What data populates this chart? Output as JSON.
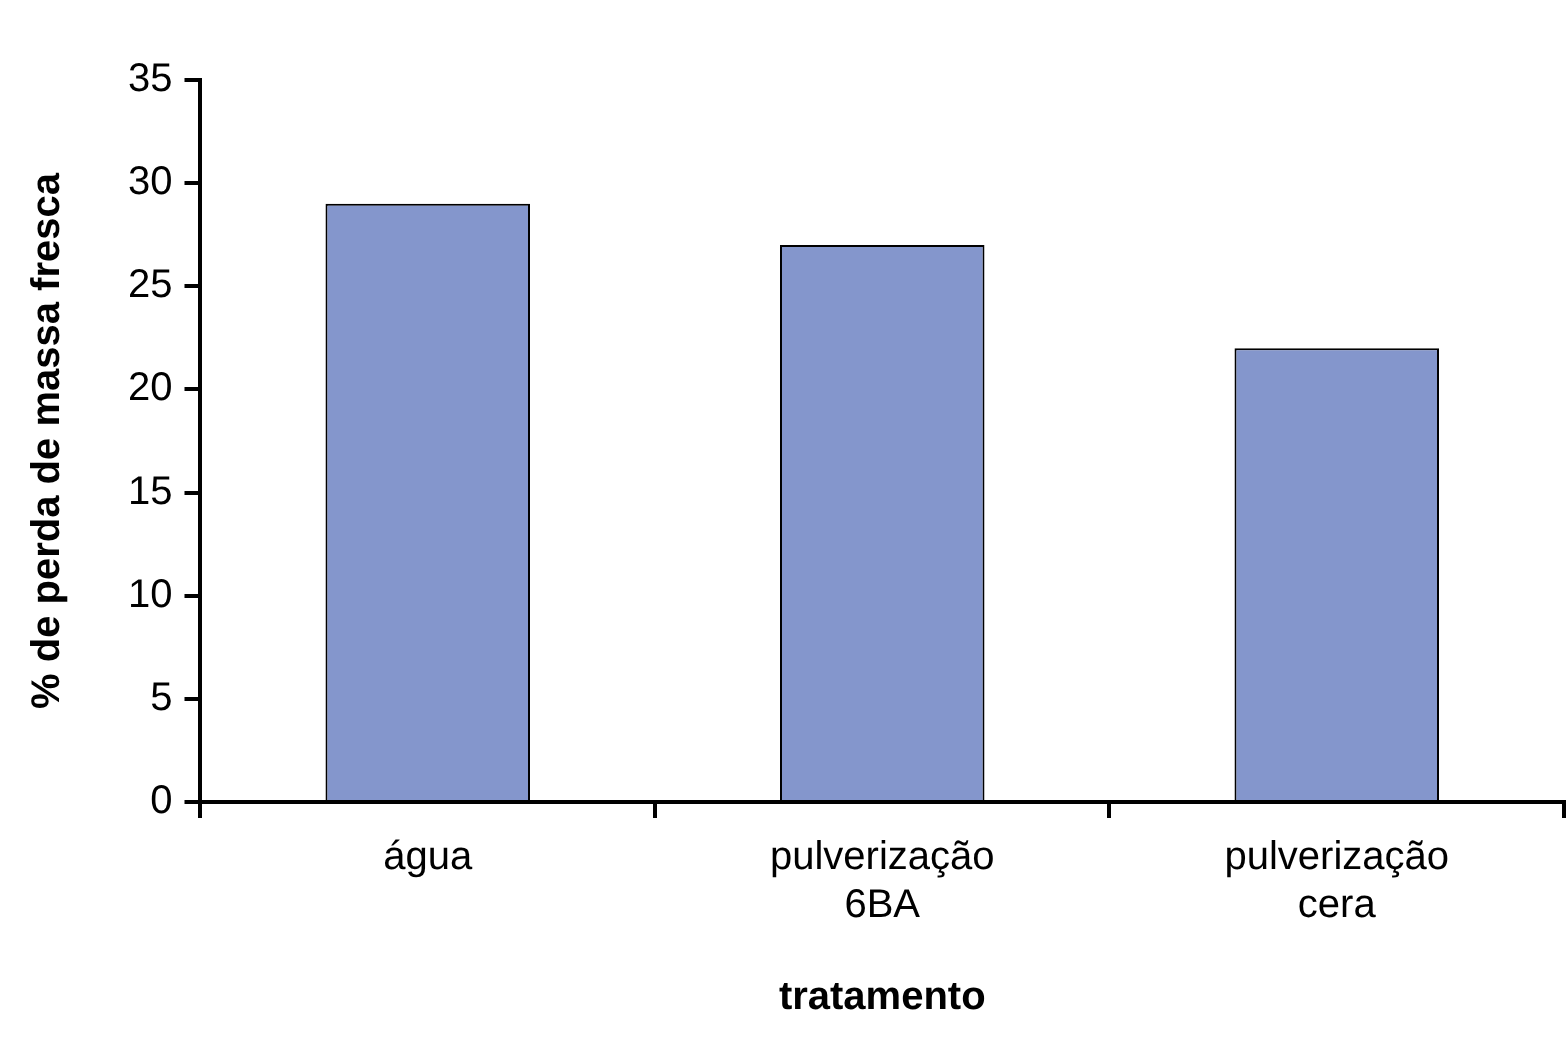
{
  "chart_data": {
    "type": "bar",
    "xlabel": "tratamento",
    "ylabel": "% de perda de massa fresca",
    "categories": [
      "água",
      "pulverização\n6BA",
      "pulverização\ncera"
    ],
    "values": [
      29,
      27,
      22
    ],
    "color": "#8496cc",
    "ylim": [
      0,
      35
    ],
    "yticks": [
      0,
      5,
      10,
      15,
      20,
      25,
      30,
      35
    ],
    "grid": false,
    "legend": false
  }
}
